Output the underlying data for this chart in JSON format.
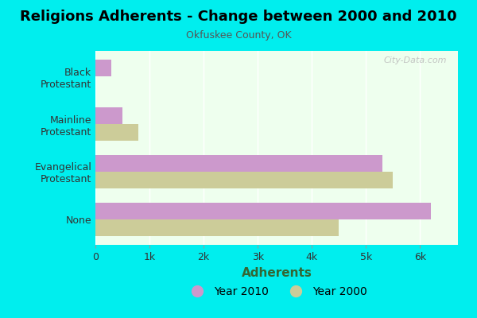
{
  "title": "Religions Adherents - Change between 2000 and 2010",
  "subtitle": "Okfuskee County, OK",
  "xlabel": "Adherents",
  "categories": [
    "None",
    "Evangelical\nProtestant",
    "Mainline\nProtestant",
    "Black\nProtestant"
  ],
  "values_2010": [
    6200,
    5300,
    500,
    300
  ],
  "values_2000": [
    4500,
    5500,
    800,
    0
  ],
  "color_2010": "#cc99cc",
  "color_2000": "#cccc99",
  "background_outer": "#00eeee",
  "background_inner": "#eeffee",
  "xlim": [
    0,
    6700
  ],
  "xticks": [
    0,
    1000,
    2000,
    3000,
    4000,
    5000,
    6000
  ],
  "xticklabels": [
    "0",
    "1k",
    "2k",
    "3k",
    "4k",
    "5k",
    "6k"
  ],
  "legend_labels": [
    "Year 2010",
    "Year 2000"
  ],
  "watermark": "City-Data.com",
  "bar_height": 0.35
}
